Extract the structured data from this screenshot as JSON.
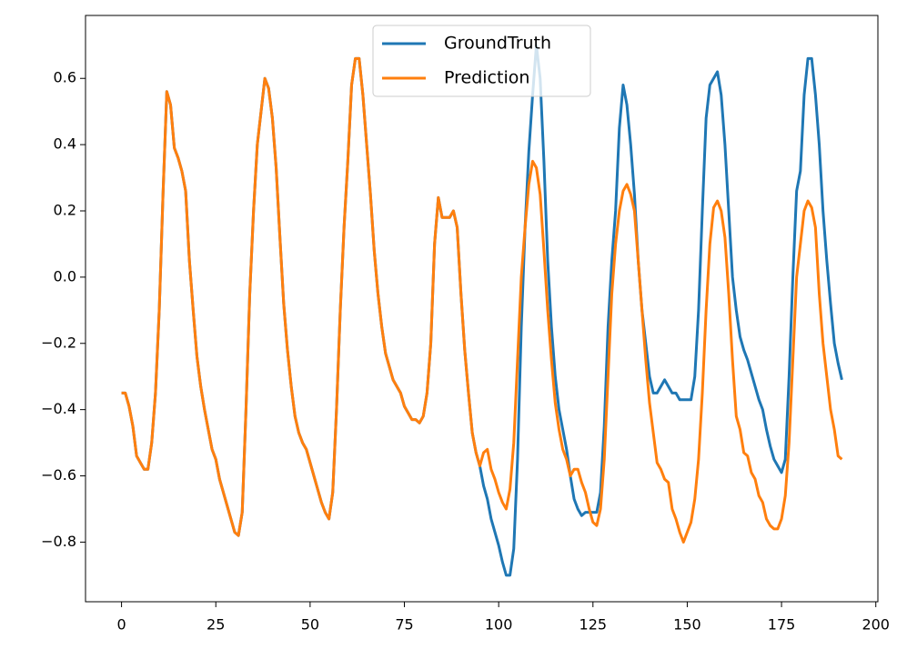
{
  "chart_data": {
    "type": "line",
    "x": [
      0,
      1,
      2,
      3,
      4,
      5,
      6,
      7,
      8,
      9,
      10,
      11,
      12,
      13,
      14,
      15,
      16,
      17,
      18,
      19,
      20,
      21,
      22,
      23,
      24,
      25,
      26,
      27,
      28,
      29,
      30,
      31,
      32,
      33,
      34,
      35,
      36,
      37,
      38,
      39,
      40,
      41,
      42,
      43,
      44,
      45,
      46,
      47,
      48,
      49,
      50,
      51,
      52,
      53,
      54,
      55,
      56,
      57,
      58,
      59,
      60,
      61,
      62,
      63,
      64,
      65,
      66,
      67,
      68,
      69,
      70,
      71,
      72,
      73,
      74,
      75,
      76,
      77,
      78,
      79,
      80,
      81,
      82,
      83,
      84,
      85,
      86,
      87,
      88,
      89,
      90,
      91,
      92,
      93,
      94,
      95,
      96,
      97,
      98,
      99,
      100,
      101,
      102,
      103,
      104,
      105,
      106,
      107,
      108,
      109,
      110,
      111,
      112,
      113,
      114,
      115,
      116,
      117,
      118,
      119,
      120,
      121,
      122,
      123,
      124,
      125,
      126,
      127,
      128,
      129,
      130,
      131,
      132,
      133,
      134,
      135,
      136,
      137,
      138,
      139,
      140,
      141,
      142,
      143,
      144,
      145,
      146,
      147,
      148,
      149,
      150,
      151,
      152,
      153,
      154,
      155,
      156,
      157,
      158,
      159,
      160,
      161,
      162,
      163,
      164,
      165,
      166,
      167,
      168,
      169,
      170,
      171,
      172,
      173,
      174,
      175,
      176,
      177,
      178,
      179,
      180,
      181,
      182,
      183,
      184,
      185,
      186,
      187,
      188,
      189,
      190,
      191
    ],
    "series": [
      {
        "name": "GroundTruth",
        "color": "#1f77b4",
        "values": [
          -0.35,
          -0.35,
          -0.39,
          -0.45,
          -0.54,
          -0.56,
          -0.58,
          -0.58,
          -0.5,
          -0.35,
          -0.1,
          0.25,
          0.56,
          0.52,
          0.39,
          0.36,
          0.32,
          0.26,
          0.05,
          -0.1,
          -0.24,
          -0.33,
          -0.4,
          -0.46,
          -0.52,
          -0.55,
          -0.61,
          -0.65,
          -0.69,
          -0.73,
          -0.77,
          -0.78,
          -0.71,
          -0.4,
          -0.05,
          0.2,
          0.4,
          0.5,
          0.6,
          0.57,
          0.48,
          0.33,
          0.12,
          -0.08,
          -0.22,
          -0.33,
          -0.42,
          -0.47,
          -0.5,
          -0.52,
          -0.56,
          -0.6,
          -0.64,
          -0.68,
          -0.71,
          -0.73,
          -0.65,
          -0.4,
          -0.1,
          0.15,
          0.35,
          0.58,
          0.66,
          0.66,
          0.55,
          0.4,
          0.25,
          0.08,
          -0.05,
          -0.15,
          -0.23,
          -0.27,
          -0.31,
          -0.33,
          -0.35,
          -0.39,
          -0.41,
          -0.43,
          -0.43,
          -0.44,
          -0.42,
          -0.35,
          -0.2,
          0.1,
          0.24,
          0.18,
          0.18,
          0.18,
          0.2,
          0.15,
          -0.05,
          -0.22,
          -0.35,
          -0.47,
          -0.53,
          -0.57,
          -0.63,
          -0.67,
          -0.73,
          -0.77,
          -0.81,
          -0.86,
          -0.9,
          -0.9,
          -0.82,
          -0.55,
          -0.15,
          0.15,
          0.38,
          0.55,
          0.7,
          0.6,
          0.35,
          0.05,
          -0.15,
          -0.3,
          -0.4,
          -0.46,
          -0.52,
          -0.6,
          -0.67,
          -0.7,
          -0.72,
          -0.71,
          -0.71,
          -0.71,
          -0.71,
          -0.65,
          -0.45,
          -0.15,
          0.05,
          0.2,
          0.45,
          0.58,
          0.52,
          0.4,
          0.25,
          0.05,
          -0.1,
          -0.2,
          -0.3,
          -0.35,
          -0.35,
          -0.33,
          -0.31,
          -0.33,
          -0.35,
          -0.35,
          -0.37,
          -0.37,
          -0.37,
          -0.37,
          -0.3,
          -0.1,
          0.2,
          0.48,
          0.58,
          0.6,
          0.62,
          0.55,
          0.4,
          0.2,
          0.0,
          -0.1,
          -0.18,
          -0.22,
          -0.25,
          -0.29,
          -0.33,
          -0.37,
          -0.4,
          -0.46,
          -0.51,
          -0.55,
          -0.57,
          -0.59,
          -0.55,
          -0.3,
          0.0,
          0.26,
          0.32,
          0.55,
          0.66,
          0.66,
          0.55,
          0.4,
          0.2,
          0.05,
          -0.08,
          -0.2,
          -0.26,
          -0.31
        ]
      },
      {
        "name": "Prediction",
        "color": "#ff7f0e",
        "values": [
          -0.35,
          -0.35,
          -0.39,
          -0.45,
          -0.54,
          -0.56,
          -0.58,
          -0.58,
          -0.5,
          -0.35,
          -0.1,
          0.25,
          0.56,
          0.52,
          0.39,
          0.36,
          0.32,
          0.26,
          0.05,
          -0.1,
          -0.24,
          -0.33,
          -0.4,
          -0.46,
          -0.52,
          -0.55,
          -0.61,
          -0.65,
          -0.69,
          -0.73,
          -0.77,
          -0.78,
          -0.71,
          -0.4,
          -0.05,
          0.2,
          0.4,
          0.5,
          0.6,
          0.57,
          0.48,
          0.33,
          0.12,
          -0.08,
          -0.22,
          -0.33,
          -0.42,
          -0.47,
          -0.5,
          -0.52,
          -0.56,
          -0.6,
          -0.64,
          -0.68,
          -0.71,
          -0.73,
          -0.65,
          -0.4,
          -0.1,
          0.15,
          0.35,
          0.58,
          0.66,
          0.66,
          0.55,
          0.4,
          0.25,
          0.08,
          -0.05,
          -0.15,
          -0.23,
          -0.27,
          -0.31,
          -0.33,
          -0.35,
          -0.39,
          -0.41,
          -0.43,
          -0.43,
          -0.44,
          -0.42,
          -0.35,
          -0.2,
          0.1,
          0.24,
          0.18,
          0.18,
          0.18,
          0.2,
          0.15,
          -0.05,
          -0.22,
          -0.35,
          -0.47,
          -0.53,
          -0.57,
          -0.53,
          -0.52,
          -0.58,
          -0.61,
          -0.65,
          -0.68,
          -0.7,
          -0.64,
          -0.5,
          -0.25,
          0.0,
          0.15,
          0.28,
          0.35,
          0.33,
          0.25,
          0.08,
          -0.1,
          -0.25,
          -0.38,
          -0.46,
          -0.52,
          -0.55,
          -0.6,
          -0.58,
          -0.58,
          -0.62,
          -0.65,
          -0.7,
          -0.74,
          -0.75,
          -0.7,
          -0.55,
          -0.3,
          -0.05,
          0.1,
          0.2,
          0.26,
          0.28,
          0.25,
          0.2,
          0.05,
          -0.1,
          -0.25,
          -0.38,
          -0.47,
          -0.56,
          -0.58,
          -0.61,
          -0.62,
          -0.7,
          -0.73,
          -0.77,
          -0.8,
          -0.77,
          -0.74,
          -0.67,
          -0.55,
          -0.35,
          -0.1,
          0.1,
          0.21,
          0.23,
          0.2,
          0.12,
          -0.05,
          -0.25,
          -0.42,
          -0.46,
          -0.53,
          -0.54,
          -0.59,
          -0.61,
          -0.66,
          -0.68,
          -0.73,
          -0.75,
          -0.76,
          -0.76,
          -0.73,
          -0.66,
          -0.5,
          -0.25,
          0.0,
          0.1,
          0.2,
          0.23,
          0.21,
          0.15,
          -0.05,
          -0.2,
          -0.3,
          -0.4,
          -0.46,
          -0.54,
          -0.55
        ]
      }
    ],
    "xlim": [
      -9.55,
      200.55
    ],
    "ylim": [
      -0.98,
      0.79
    ],
    "xticks": [
      0,
      25,
      50,
      75,
      100,
      125,
      150,
      175,
      200
    ],
    "yticks": [
      {
        "value": -0.8,
        "label": "−0.8"
      },
      {
        "value": -0.6,
        "label": "−0.6"
      },
      {
        "value": -0.4,
        "label": "−0.4"
      },
      {
        "value": -0.2,
        "label": "−0.2"
      },
      {
        "value": 0,
        "label": "0.0"
      },
      0.2,
      0.4,
      0.6
    ],
    "legend": "upper center"
  }
}
